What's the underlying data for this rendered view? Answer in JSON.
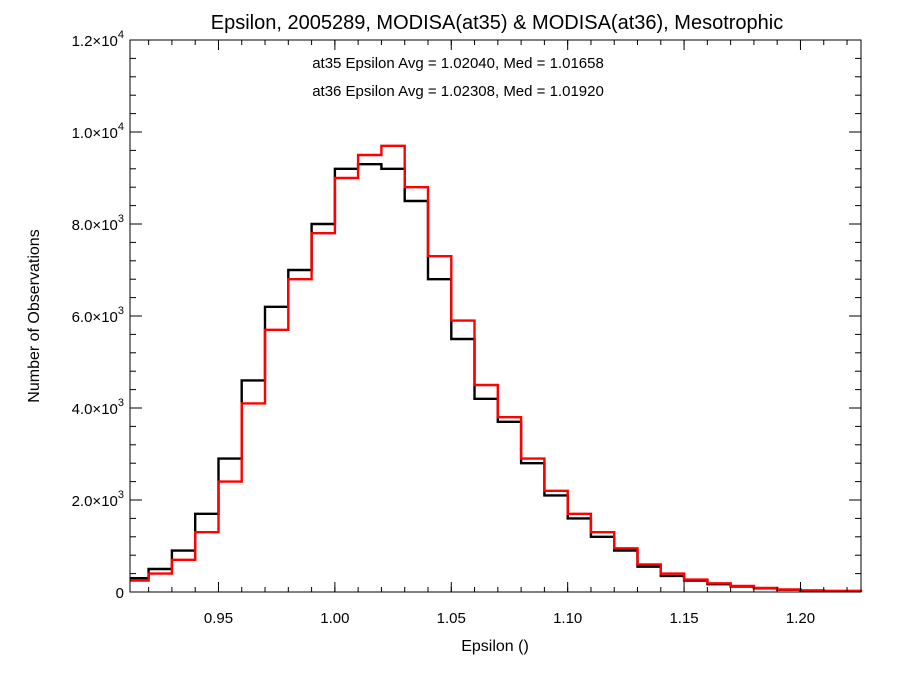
{
  "chart_data": {
    "type": "histogram-step",
    "title": "Epsilon, 2005289, MODISA(at35) & MODISA(at36), Mesotrophic",
    "xlabel": "Epsilon ()",
    "ylabel": "Number of Observations",
    "xlim": [
      0.912,
      1.226
    ],
    "ylim": [
      0,
      12000
    ],
    "x_ticks": [
      {
        "value": 0.95,
        "label": "0.95"
      },
      {
        "value": 1.0,
        "label": "1.00"
      },
      {
        "value": 1.05,
        "label": "1.05"
      },
      {
        "value": 1.1,
        "label": "1.10"
      },
      {
        "value": 1.15,
        "label": "1.15"
      },
      {
        "value": 1.2,
        "label": "1.20"
      }
    ],
    "y_ticks": [
      {
        "value": 0,
        "mantissa": "0",
        "exponent": ""
      },
      {
        "value": 2000,
        "mantissa": "2.0×10",
        "exponent": "3"
      },
      {
        "value": 4000,
        "mantissa": "4.0×10",
        "exponent": "3"
      },
      {
        "value": 6000,
        "mantissa": "6.0×10",
        "exponent": "3"
      },
      {
        "value": 8000,
        "mantissa": "8.0×10",
        "exponent": "3"
      },
      {
        "value": 10000,
        "mantissa": "1.0×10",
        "exponent": "4"
      },
      {
        "value": 12000,
        "mantissa": "1.2×10",
        "exponent": "4"
      }
    ],
    "annotations": [
      {
        "text": "at35 Epsilon Avg = 1.02040, Med = 1.01658",
        "color": "#000000"
      },
      {
        "text": "at36 Epsilon Avg = 1.02308, Med = 1.01920",
        "color": "#ff0000"
      }
    ],
    "series": [
      {
        "color": "#000000",
        "x": [
          0.912,
          0.92,
          0.93,
          0.94,
          0.95,
          0.96,
          0.97,
          0.98,
          0.99,
          1.0,
          1.01,
          1.02,
          1.03,
          1.04,
          1.05,
          1.06,
          1.07,
          1.08,
          1.09,
          1.1,
          1.11,
          1.12,
          1.13,
          1.14,
          1.15,
          1.16,
          1.17,
          1.18,
          1.19,
          1.2,
          1.21,
          1.226
        ],
        "values": [
          300,
          500,
          900,
          1700,
          2900,
          4600,
          6200,
          7000,
          8000,
          9200,
          9300,
          9200,
          8500,
          6800,
          5500,
          4200,
          3700,
          2800,
          2100,
          1600,
          1200,
          900,
          550,
          350,
          250,
          170,
          120,
          80,
          50,
          30,
          20,
          10
        ]
      },
      {
        "color": "#ff0000",
        "x": [
          0.912,
          0.92,
          0.93,
          0.94,
          0.95,
          0.96,
          0.97,
          0.98,
          0.99,
          1.0,
          1.01,
          1.02,
          1.03,
          1.04,
          1.05,
          1.06,
          1.07,
          1.08,
          1.09,
          1.1,
          1.11,
          1.12,
          1.13,
          1.14,
          1.15,
          1.16,
          1.17,
          1.18,
          1.19,
          1.2,
          1.21,
          1.226
        ],
        "values": [
          250,
          400,
          700,
          1300,
          2400,
          4100,
          5700,
          6800,
          7800,
          9000,
          9500,
          9700,
          8800,
          7300,
          5900,
          4500,
          3800,
          2900,
          2200,
          1700,
          1300,
          950,
          600,
          400,
          270,
          190,
          130,
          90,
          55,
          35,
          22,
          12
        ]
      }
    ]
  }
}
